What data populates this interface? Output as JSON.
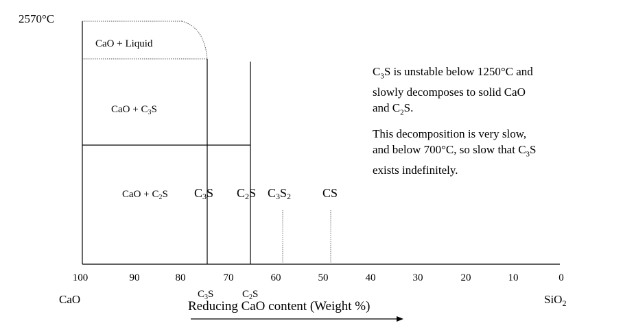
{
  "top_temperature": "2570°C",
  "regions": {
    "cao_liquid": "CaO + Liquid",
    "cao_c3s": {
      "base": "CaO + C",
      "sub": "3",
      "tail": "S"
    },
    "cao_c2s": {
      "base": "CaO + C",
      "sub": "2",
      "tail": "S"
    }
  },
  "compounds": [
    {
      "base": "C",
      "sub": "3",
      "tail": "S",
      "sub2": "",
      "wt": 73.7
    },
    {
      "base": "C",
      "sub": "2",
      "tail": "S",
      "sub2": "",
      "wt": 65.1
    },
    {
      "base": "C",
      "sub": "3",
      "tail": "S",
      "sub2": "2",
      "wt": 58.3
    },
    {
      "base": "CS",
      "sub": "",
      "tail": "",
      "sub2": "",
      "wt": 48.3
    }
  ],
  "axis": {
    "ticks": [
      "100",
      "90",
      "80",
      "70",
      "60",
      "50",
      "40",
      "30",
      "20",
      "10",
      "0"
    ],
    "tick_values": [
      100,
      90,
      80,
      70,
      60,
      50,
      40,
      30,
      20,
      10,
      0
    ],
    "left_end_label": "CaO",
    "right_end_label": {
      "base": "SiO",
      "sub": "2"
    },
    "title": "Reducing CaO content (Weight %)",
    "compound_marks": [
      {
        "base": "C",
        "sub": "3",
        "tail": "S",
        "wt": 73.7
      },
      {
        "base": "C",
        "sub": "2",
        "tail": "S",
        "wt": 65.1
      }
    ]
  },
  "notes": {
    "paragraph1": {
      "line1_a": "C",
      "line1_sub": "3",
      "line1_b": "S is unstable below 1250°C and",
      "line2": "slowly decomposes to solid CaO",
      "line3_a": "and C",
      "line3_sub": "2",
      "line3_b": "S."
    },
    "paragraph2": {
      "line1": "This decomposition is very slow,",
      "line2_a": "and below 700°C, so slow that C",
      "line2_sub": "3",
      "line2_b": "S",
      "line3": "exists indefinitely."
    }
  },
  "colors": {
    "lines": "#000000",
    "dotted": "#555555",
    "background": "#ffffff"
  }
}
